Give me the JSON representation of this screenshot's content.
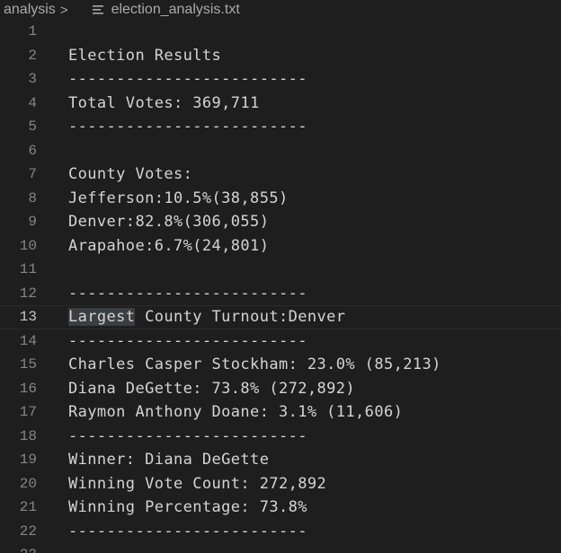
{
  "breadcrumb": {
    "folder": "analysis",
    "separator": ">",
    "file": "election_analysis.txt",
    "file_icon": "text-file-icon"
  },
  "editor": {
    "current_line": 13,
    "highlighted_word": "Largest",
    "lines": [
      {
        "num": "1",
        "text": ""
      },
      {
        "num": "2",
        "text": "Election Results"
      },
      {
        "num": "3",
        "text": "-------------------------"
      },
      {
        "num": "4",
        "text": "Total Votes: 369,711"
      },
      {
        "num": "5",
        "text": "-------------------------"
      },
      {
        "num": "6",
        "text": ""
      },
      {
        "num": "7",
        "text": "County Votes:"
      },
      {
        "num": "8",
        "text": "Jefferson:10.5%(38,855)"
      },
      {
        "num": "9",
        "text": "Denver:82.8%(306,055)"
      },
      {
        "num": "10",
        "text": "Arapahoe:6.7%(24,801)"
      },
      {
        "num": "11",
        "text": ""
      },
      {
        "num": "12",
        "text": "-------------------------"
      },
      {
        "num": "13",
        "text": " County Turnout:Denver"
      },
      {
        "num": "14",
        "text": "-------------------------"
      },
      {
        "num": "15",
        "text": "Charles Casper Stockham: 23.0% (85,213)"
      },
      {
        "num": "16",
        "text": "Diana DeGette: 73.8% (272,892)"
      },
      {
        "num": "17",
        "text": "Raymon Anthony Doane: 3.1% (11,606)"
      },
      {
        "num": "18",
        "text": "-------------------------"
      },
      {
        "num": "19",
        "text": "Winner: Diana DeGette"
      },
      {
        "num": "20",
        "text": "Winning Vote Count: 272,892"
      },
      {
        "num": "21",
        "text": "Winning Percentage: 73.8%"
      },
      {
        "num": "22",
        "text": "-------------------------"
      },
      {
        "num": "23",
        "text": ""
      }
    ]
  }
}
